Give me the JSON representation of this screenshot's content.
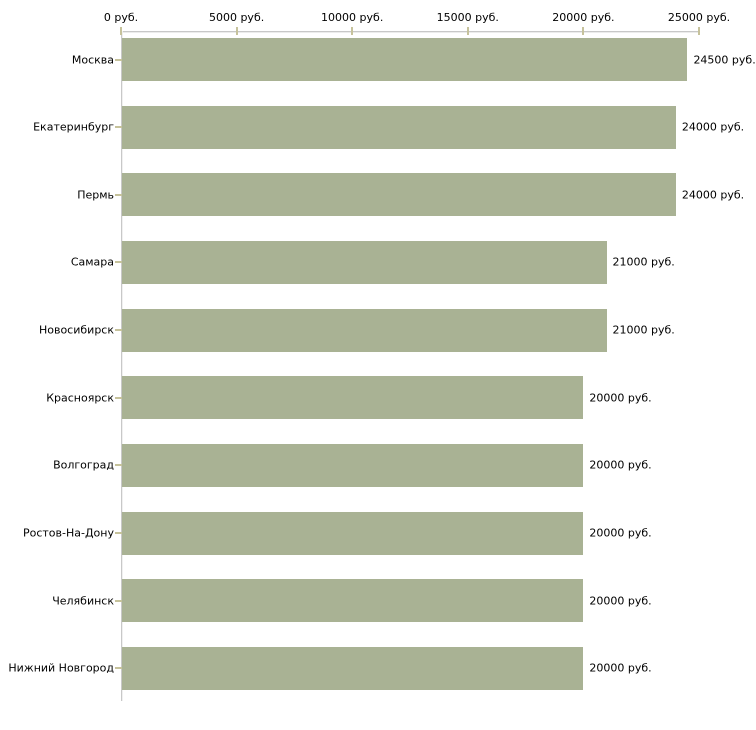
{
  "chart_data": {
    "type": "bar",
    "orientation": "horizontal",
    "title": "",
    "xlabel": "",
    "ylabel": "",
    "unit": "руб.",
    "categories": [
      "Москва",
      "Екатеринбург",
      "Пермь",
      "Самара",
      "Новосибирск",
      "Красноярск",
      "Волгоград",
      "Ростов-На-Дону",
      "Челябинск",
      "Нижний Новгород"
    ],
    "values": [
      24500,
      24000,
      24000,
      21000,
      21000,
      20000,
      20000,
      20000,
      20000,
      20000
    ],
    "value_labels": [
      "24500 руб.",
      "24000 руб.",
      "24000 руб.",
      "21000 руб.",
      "21000 руб.",
      "20000 руб.",
      "20000 руб.",
      "20000 руб.",
      "20000 руб.",
      "20000 руб."
    ],
    "x_axis": {
      "position": "top",
      "range": [
        0,
        25000
      ],
      "tick_values": [
        0,
        5000,
        10000,
        15000,
        20000,
        25000
      ],
      "tick_labels": [
        "0 руб.",
        "5000 руб.",
        "10000 руб.",
        "15000 руб.",
        "20000 руб.",
        "25000 руб."
      ]
    },
    "grid": false,
    "legend": false,
    "colors": {
      "bar": "#a9b294",
      "axis_line": "#c8c8c8",
      "tick_mark": "#c6c29b",
      "text": "#000000",
      "background": "#ffffff"
    }
  }
}
